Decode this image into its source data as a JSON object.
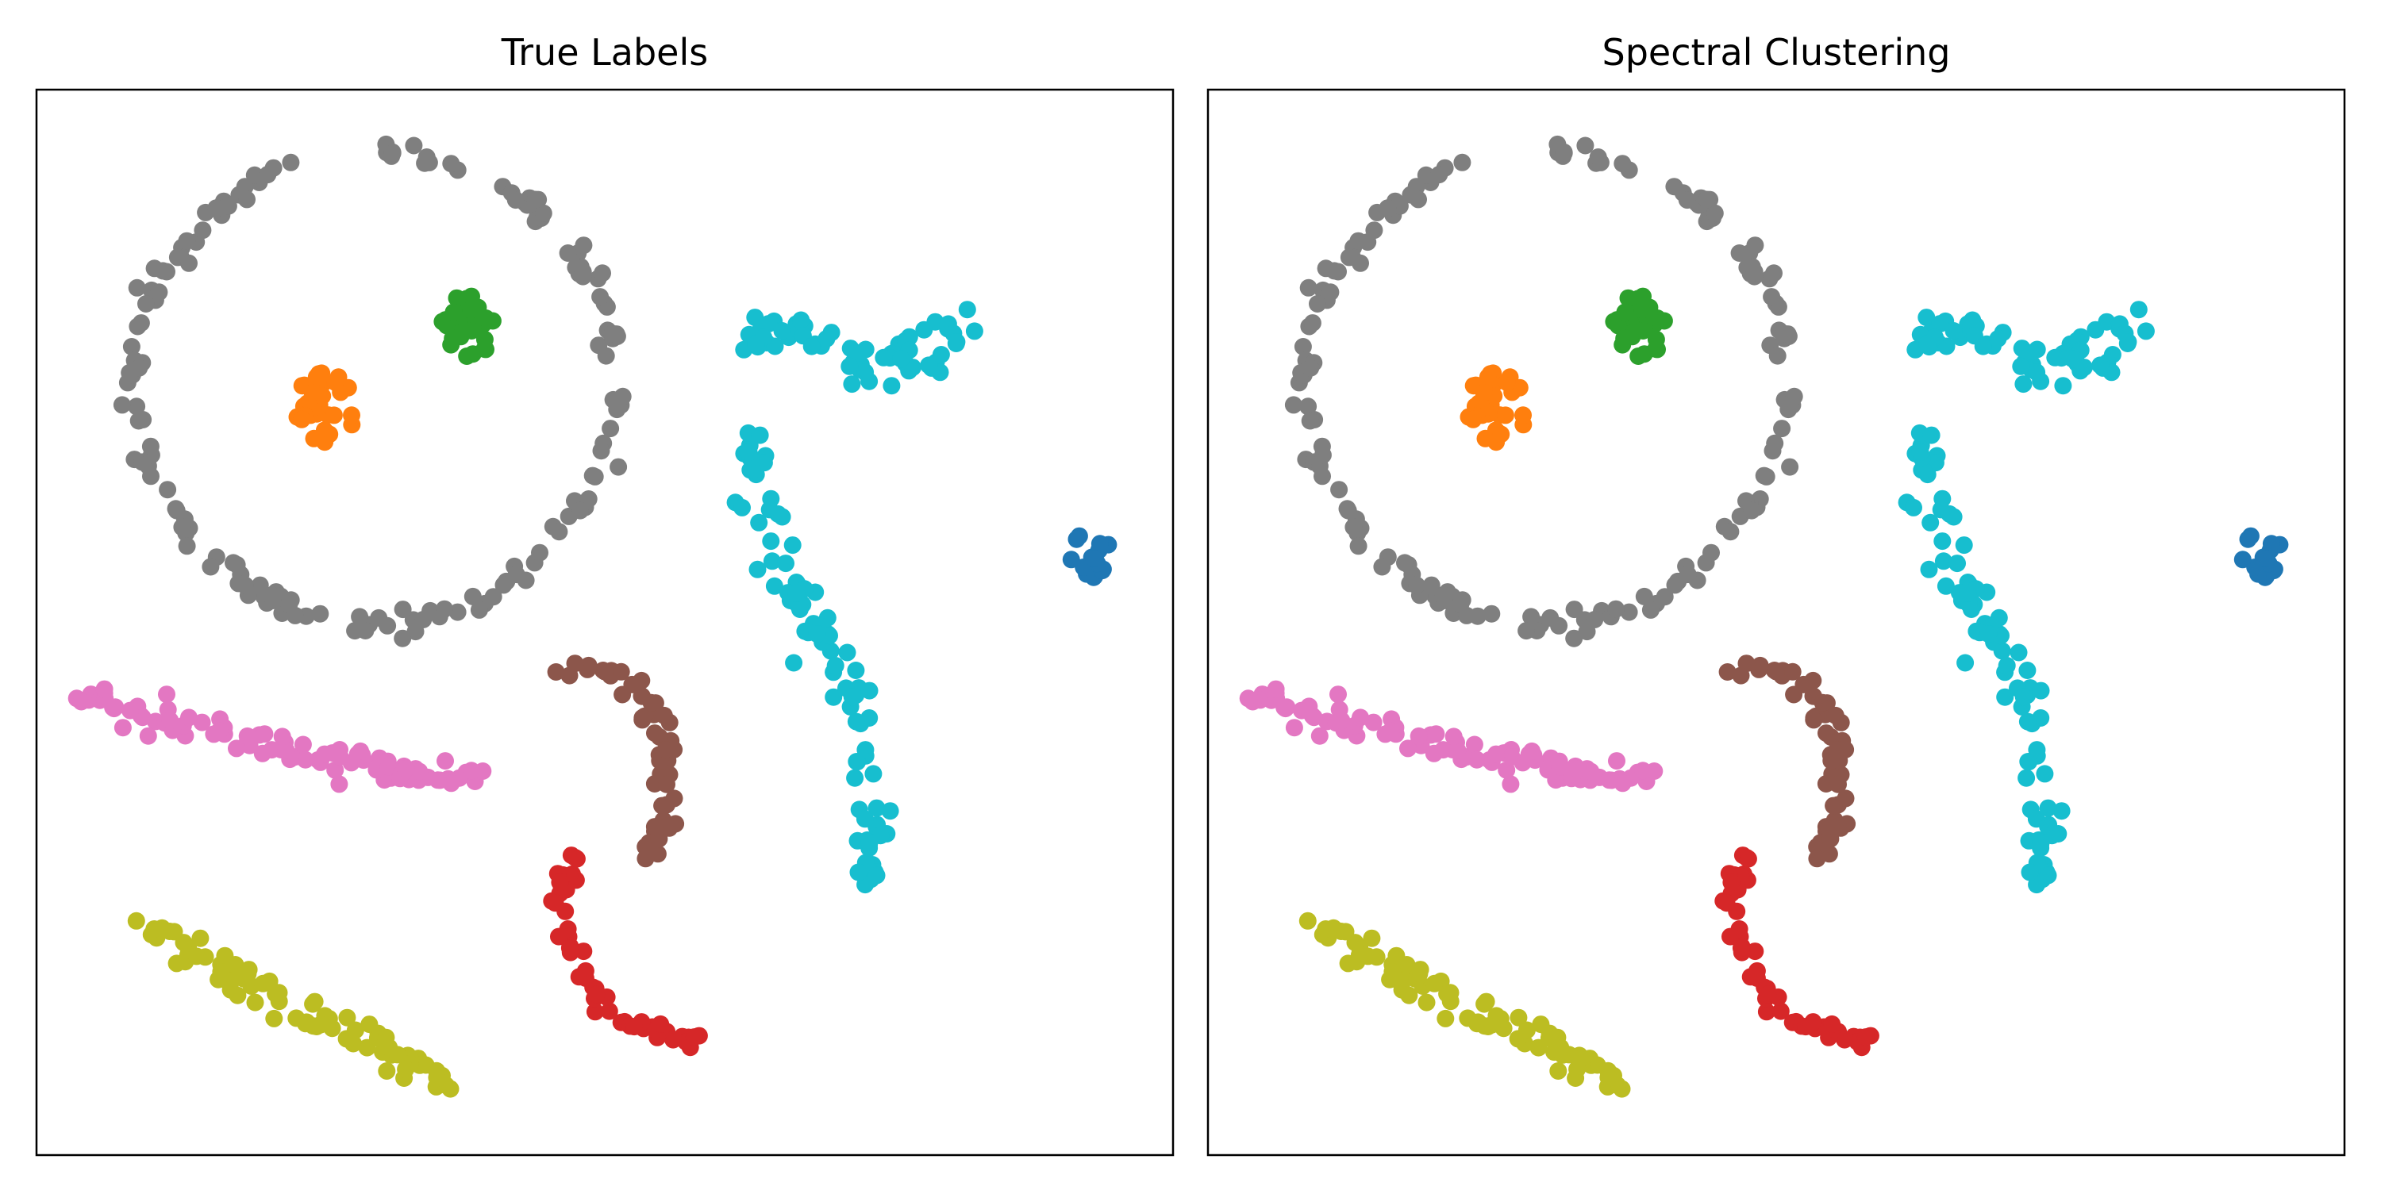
{
  "chart_data": [
    {
      "type": "scatter",
      "title": "True Labels",
      "xlim": [
        0,
        1
      ],
      "ylim": [
        0,
        1
      ],
      "grid": false,
      "ticks_visible": false,
      "clusters": [
        {
          "label": "outer ring",
          "color": "#7f7f7f"
        },
        {
          "label": "orange blob",
          "color": "#ff7f0e"
        },
        {
          "label": "green blob",
          "color": "#2ca02c"
        },
        {
          "label": "blue blob",
          "color": "#1f77b4"
        },
        {
          "label": "cyan curve",
          "color": "#17becf"
        },
        {
          "label": "pink band",
          "color": "#e377c2"
        },
        {
          "label": "brown arc",
          "color": "#8c564b"
        },
        {
          "label": "red arc",
          "color": "#d62728"
        },
        {
          "label": "olive band",
          "color": "#bcbd22"
        }
      ]
    },
    {
      "type": "scatter",
      "title": "Spectral Clustering",
      "xlim": [
        0,
        1
      ],
      "ylim": [
        0,
        1
      ],
      "grid": false,
      "ticks_visible": false,
      "clusters": [
        {
          "label": "outer ring",
          "color": "#7f7f7f"
        },
        {
          "label": "orange blob",
          "color": "#ff7f0e"
        },
        {
          "label": "green blob",
          "color": "#2ca02c"
        },
        {
          "label": "blue blob",
          "color": "#1f77b4"
        },
        {
          "label": "cyan curve",
          "color": "#17becf"
        },
        {
          "label": "pink band",
          "color": "#e377c2"
        },
        {
          "label": "brown arc",
          "color": "#8c564b"
        },
        {
          "label": "red arc",
          "color": "#d62728"
        },
        {
          "label": "olive band",
          "color": "#bcbd22"
        }
      ]
    }
  ]
}
